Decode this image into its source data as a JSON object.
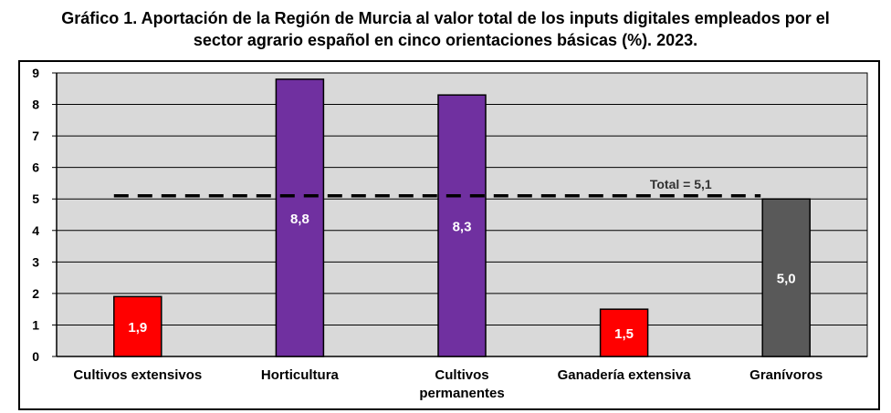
{
  "title_line1": "Gráfico 1. Aportación de la Región de Murcia al valor total de los inputs digitales empleados por el",
  "title_line2": "sector agrario español en cinco orientaciones básicas (%). 2023.",
  "chart_data": {
    "type": "bar",
    "title": "Gráfico 1. Aportación de la Región de Murcia al valor total de los inputs digitales empleados por el sector agrario español en cinco orientaciones básicas (%). 2023.",
    "categories": [
      [
        "Cultivos extensivos"
      ],
      [
        "Horticultura"
      ],
      [
        "Cultivos",
        "permanentes"
      ],
      [
        "Ganadería extensiva"
      ],
      [
        "Granívoros"
      ]
    ],
    "values": [
      1.9,
      8.8,
      8.3,
      1.5,
      5.0
    ],
    "data_labels": [
      "1,9",
      "8,8",
      "8,3",
      "1,5",
      "5,0"
    ],
    "bar_colors": [
      "#ff0000",
      "#7030a0",
      "#7030a0",
      "#ff0000",
      "#595959"
    ],
    "plot_background": "#d9d9d9",
    "ylim": [
      0,
      9
    ],
    "yticks": [
      0,
      1,
      2,
      3,
      4,
      5,
      6,
      7,
      8,
      9
    ],
    "grid": true,
    "reference_line": {
      "value": 5.1,
      "label": "Total = 5,1",
      "style": "dashed"
    },
    "xlabel": "",
    "ylabel": ""
  }
}
